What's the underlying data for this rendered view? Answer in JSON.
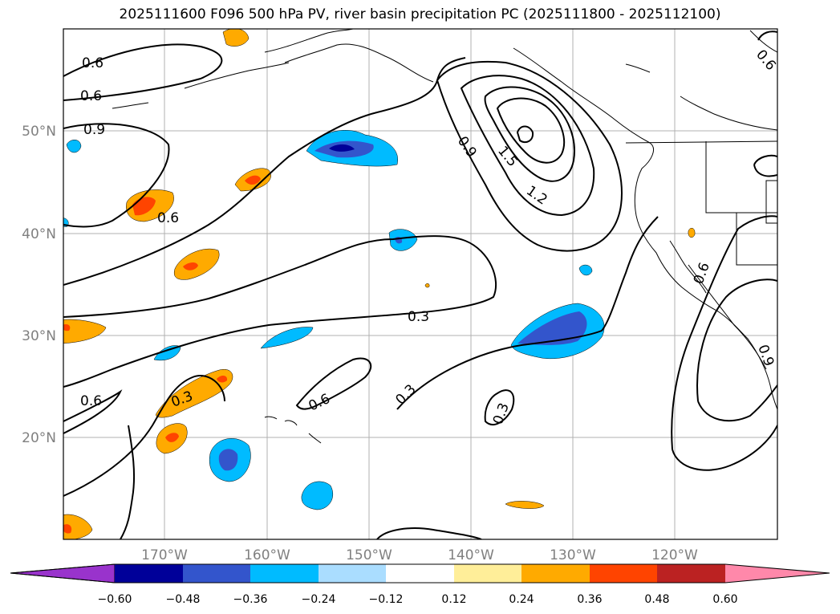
{
  "title": "2025111600 F096 500 hPa PV, river basin precipitation PC (2025111800 - 2025112100)",
  "map": {
    "lon_ticks": [
      "170°W",
      "160°W",
      "150°W",
      "140°W",
      "130°W",
      "120°W"
    ],
    "lat_ticks": [
      "50°N",
      "40°N",
      "30°N",
      "20°N"
    ],
    "contour_labels": [
      "0.6",
      "0.6",
      "0.9",
      "0.6",
      "0.9",
      "1.5",
      "1.2",
      "0.3",
      "0.6",
      "0.3",
      "0.3",
      "0.6",
      "0.3",
      "0.6",
      "0.9",
      "0.6"
    ]
  },
  "colorbar": {
    "colors": [
      "#9933cc",
      "#000099",
      "#3355cc",
      "#00bbff",
      "#aaddff",
      "#ffffff",
      "#ffee99",
      "#ffaa00",
      "#ff4400",
      "#bb2222",
      "#ff88aa",
      "#ff88aa"
    ],
    "ticks": [
      "−0.60",
      "−0.48",
      "−0.36",
      "−0.24",
      "−0.12",
      "0.12",
      "0.24",
      "0.36",
      "0.48",
      "0.60"
    ]
  }
}
